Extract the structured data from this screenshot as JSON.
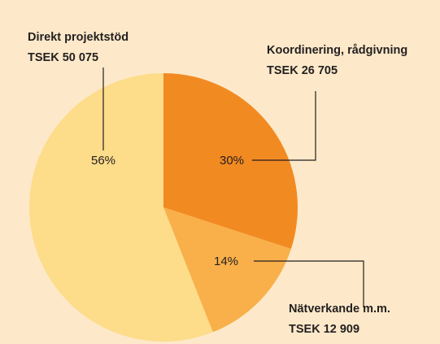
{
  "chart_data": {
    "type": "pie",
    "categories": [
      "Koordinering, rådgivning",
      "Nätverkande m.m.",
      "Direkt projektstöd"
    ],
    "values": [
      30,
      14,
      56
    ],
    "value_labels": [
      "30%",
      "14%",
      "56%"
    ],
    "amounts": [
      "TSEK 26 705",
      "TSEK 12 909",
      "TSEK 50 075"
    ],
    "colors": [
      "#f28a22",
      "#f9b04a",
      "#fddc8a"
    ]
  }
}
